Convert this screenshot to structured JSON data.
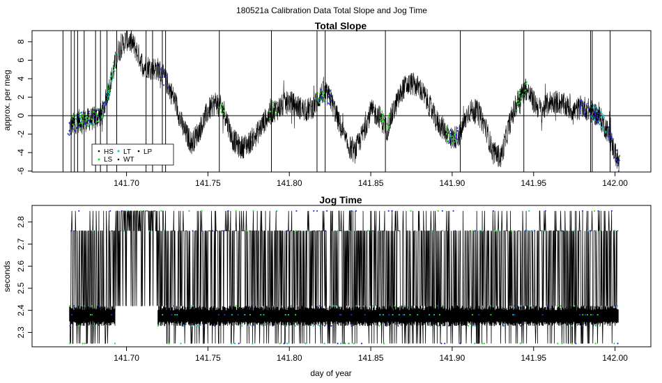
{
  "figure_title": "180521a   Calibration Data Total Slope and Jog Time",
  "chart_data": [
    {
      "type": "line",
      "title": "Total Slope",
      "xlabel": "",
      "ylabel": "approx. per meg",
      "xlim": [
        141.642,
        142.022
      ],
      "ylim": [
        -6.1,
        9.2
      ],
      "x_ticks": [
        141.7,
        141.75,
        141.8,
        141.85,
        141.9,
        141.95,
        142.0
      ],
      "x_tick_labels": [
        "141.70",
        "141.75",
        "141.80",
        "141.85",
        "141.90",
        "141.95",
        "142.00"
      ],
      "y_ticks": [
        -6,
        -4,
        -2,
        0,
        2,
        4,
        6,
        8
      ],
      "y_tick_labels": [
        "-6",
        "-4",
        "-2",
        "0",
        "2",
        "4",
        "6",
        "8"
      ],
      "hline": 0,
      "grid": false,
      "legend_position": "bottom-left",
      "legend": [
        {
          "label": "HS",
          "color": "#000000"
        },
        {
          "label": "LT",
          "color": "#00cccc"
        },
        {
          "label": "LP",
          "color": "#000000"
        },
        {
          "label": "LS",
          "color": "#22dd22"
        },
        {
          "label": "WT",
          "color": "#000000"
        }
      ],
      "series": [
        {
          "line_color": "#000000",
          "x": [
            141.665,
            141.67,
            141.675,
            141.68,
            141.685,
            141.69,
            141.695,
            141.7,
            141.705,
            141.71,
            141.715,
            141.72,
            141.725,
            141.73,
            141.735,
            141.74,
            141.745,
            141.75,
            141.755,
            141.76,
            141.765,
            141.77,
            141.775,
            141.78,
            141.785,
            141.79,
            141.795,
            141.8,
            141.805,
            141.81,
            141.815,
            141.82,
            141.825,
            141.83,
            141.835,
            141.84,
            141.845,
            141.85,
            141.855,
            141.86,
            141.865,
            141.87,
            141.875,
            141.88,
            141.885,
            141.89,
            141.895,
            141.9,
            141.905,
            141.91,
            141.915,
            141.92,
            141.925,
            141.93,
            141.935,
            141.94,
            141.945,
            141.95,
            141.955,
            141.96,
            141.965,
            141.97,
            141.975,
            141.98,
            141.985,
            141.99,
            141.995,
            142.0,
            142.003
          ],
          "y": [
            -1.2,
            -0.6,
            -0.5,
            -0.3,
            0.2,
            3.5,
            7.0,
            8.3,
            7.5,
            5.5,
            5.2,
            5.0,
            3.5,
            1.5,
            -1.5,
            -3.0,
            -1.5,
            0.5,
            1.5,
            0.5,
            -2.5,
            -3.5,
            -3.0,
            -2.0,
            -0.5,
            0.5,
            1.0,
            1.5,
            1.0,
            0.5,
            1.0,
            2.5,
            2.0,
            -0.5,
            -3.0,
            -4.0,
            -2.0,
            0.5,
            0.0,
            -1.5,
            1.0,
            3.0,
            3.5,
            3.0,
            1.5,
            -0.5,
            -1.5,
            -2.5,
            -2.0,
            0.5,
            0.5,
            -1.0,
            -4.0,
            -4.5,
            -1.0,
            1.5,
            3.0,
            1.5,
            0.5,
            1.5,
            1.5,
            1.0,
            0.5,
            1.0,
            0.5,
            0.0,
            -1.5,
            -4.0,
            -5.5
          ]
        }
      ],
      "colored_point_segments": [
        {
          "x_from": 141.664,
          "x_to": 141.688,
          "color": "#2233dd"
        },
        {
          "x_from": 141.666,
          "x_to": 141.686,
          "color": "#22dd22"
        },
        {
          "x_from": 141.688,
          "x_to": 141.695,
          "color": "#22dd22"
        },
        {
          "x_from": 141.688,
          "x_to": 141.694,
          "color": "#00cccc"
        },
        {
          "x_from": 141.72,
          "x_to": 141.726,
          "color": "#2233dd"
        },
        {
          "x_from": 141.756,
          "x_to": 141.76,
          "color": "#22dd22"
        },
        {
          "x_from": 141.788,
          "x_to": 141.792,
          "color": "#22dd22"
        },
        {
          "x_from": 141.818,
          "x_to": 141.826,
          "color": "#2233dd"
        },
        {
          "x_from": 141.816,
          "x_to": 141.822,
          "color": "#22dd22"
        },
        {
          "x_from": 141.855,
          "x_to": 141.862,
          "color": "#22dd22"
        },
        {
          "x_from": 141.897,
          "x_to": 141.905,
          "color": "#2233dd"
        },
        {
          "x_from": 141.895,
          "x_to": 141.902,
          "color": "#22dd22"
        },
        {
          "x_from": 141.938,
          "x_to": 141.946,
          "color": "#22dd22"
        },
        {
          "x_from": 141.978,
          "x_to": 141.99,
          "color": "#2233dd"
        },
        {
          "x_from": 141.985,
          "x_to": 141.995,
          "color": "#00cccc"
        },
        {
          "x_from": 141.996,
          "x_to": 142.003,
          "color": "#2233dd"
        }
      ],
      "vertical_spikes_x": [
        141.661,
        141.666,
        141.668,
        141.67,
        141.674,
        141.681,
        141.684,
        141.688,
        141.694,
        141.712,
        141.716,
        141.722,
        141.724,
        141.757,
        141.789,
        141.817,
        141.822,
        141.859,
        141.905,
        141.944,
        141.985,
        141.986,
        141.997
      ]
    },
    {
      "type": "line",
      "title": "Jog Time",
      "xlabel": "day of year",
      "ylabel": "seconds",
      "xlim": [
        141.642,
        142.022
      ],
      "ylim": [
        2.235,
        2.875
      ],
      "x_ticks": [
        141.7,
        141.75,
        141.8,
        141.85,
        141.9,
        141.95,
        142.0
      ],
      "x_tick_labels": [
        "141.70",
        "141.75",
        "141.80",
        "141.85",
        "141.90",
        "141.95",
        "142.00"
      ],
      "y_ticks": [
        2.3,
        2.4,
        2.5,
        2.6,
        2.7,
        2.8
      ],
      "y_tick_labels": [
        "2.3",
        "2.4",
        "2.5",
        "2.6",
        "2.7",
        "2.8"
      ],
      "grid": false,
      "jog_levels": [
        2.25,
        2.33,
        2.38,
        2.42,
        2.76,
        2.85
      ],
      "x_range": [
        141.665,
        142.002
      ],
      "gap_x_ranges": [
        [
          141.693,
          141.719
        ]
      ],
      "level_point_colors": [
        "#2233dd",
        "#22dd22",
        "#00cccc"
      ]
    }
  ]
}
